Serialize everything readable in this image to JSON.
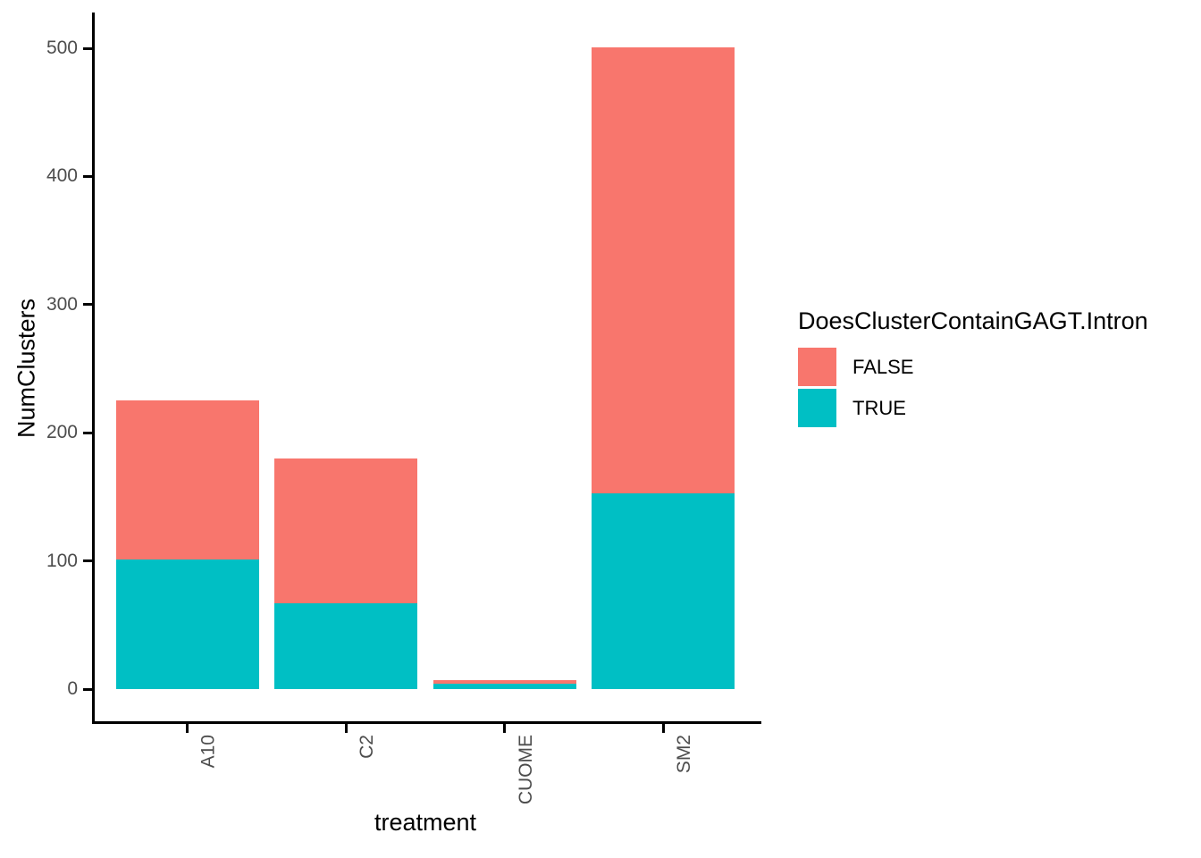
{
  "chart_data": {
    "type": "bar",
    "stacked": true,
    "title": "",
    "xlabel": "treatment",
    "ylabel": "NumClusters",
    "legend_title": "DoesClusterContainGAGT.Intron",
    "legend_position": "right",
    "grid": false,
    "categories": [
      "A10",
      "C2",
      "CUOME",
      "SM2"
    ],
    "series": [
      {
        "name": "FALSE",
        "color": "#F8766D",
        "values": [
          124,
          113,
          3,
          348
        ]
      },
      {
        "name": "TRUE",
        "color": "#00BFC4",
        "values": [
          101,
          67,
          4,
          153
        ]
      }
    ],
    "stack_bottom_to_top": [
      "TRUE",
      "FALSE"
    ],
    "totals": [
      225,
      180,
      7,
      501
    ],
    "y_ticks": [
      0,
      100,
      200,
      300,
      400,
      500
    ],
    "ylim": [
      0,
      500
    ]
  },
  "colors": {
    "axis_line": "#000000",
    "tick_text": "#4d4d4d",
    "title_text": "#000000",
    "background": "#ffffff"
  }
}
